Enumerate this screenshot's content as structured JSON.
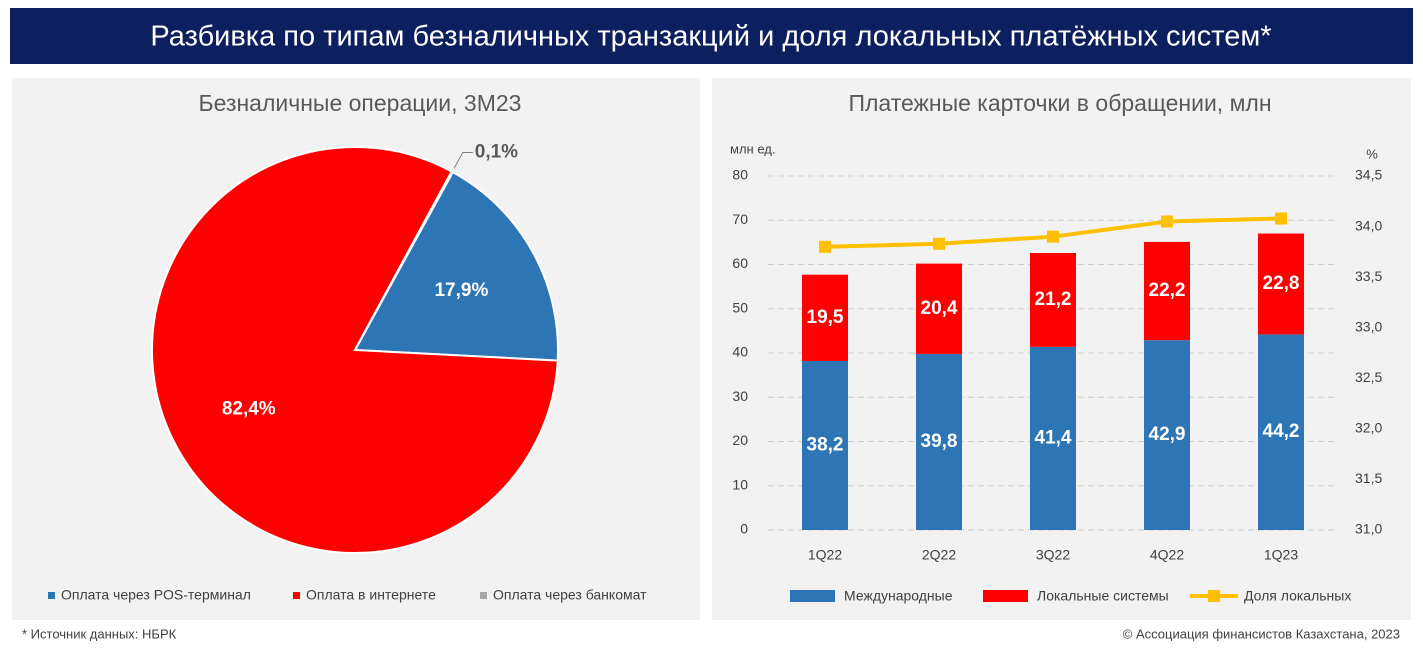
{
  "header": {
    "title": "Разбивка по типам безналичных транзакций и доля локальных платёжных систем*"
  },
  "chart_data": [
    {
      "type": "pie",
      "title": "Безналичные операции, 3М23",
      "categories": [
        "Оплата через POS-терминал",
        "Оплата в интернете",
        "Оплата через банкомат"
      ],
      "values": [
        17.9,
        82.4,
        0.1
      ],
      "value_labels": [
        "17,9%",
        "82,4%",
        "0,1%"
      ],
      "colors": [
        "#2e75b6",
        "#ff0000",
        "#a6a6a6"
      ],
      "legend": "bottom"
    },
    {
      "type": "bar",
      "stacked": true,
      "title": "Платежные карточки в обращении, млн",
      "y_label": "млн ед.",
      "y2_label": "%",
      "categories": [
        "1Q22",
        "2Q22",
        "3Q22",
        "4Q22",
        "1Q23"
      ],
      "series": [
        {
          "name": "Международные",
          "color": "#2e75b6",
          "values": [
            38.2,
            39.8,
            41.4,
            42.9,
            44.2
          ],
          "value_labels": [
            "38,2",
            "39,8",
            "41,4",
            "42,9",
            "44,2"
          ]
        },
        {
          "name": "Локальные системы",
          "color": "#ff0000",
          "values": [
            19.5,
            20.4,
            21.2,
            22.2,
            22.8
          ],
          "value_labels": [
            "19,5",
            "20,4",
            "21,2",
            "22,2",
            "22,8"
          ]
        },
        {
          "name": "Доля локальных",
          "color": "#ffc000",
          "type": "line",
          "axis": "y2",
          "values": [
            33.8,
            33.83,
            33.9,
            34.05,
            34.08
          ]
        }
      ],
      "ylim": [
        0,
        80
      ],
      "yticks": [
        0,
        10,
        20,
        30,
        40,
        50,
        60,
        70,
        80
      ],
      "y2lim": [
        31,
        34.5
      ],
      "y2ticks": [
        {
          "value": 31,
          "label": "31,0"
        },
        {
          "value": 31.5,
          "label": "31,5"
        },
        {
          "value": 32,
          "label": "32,0"
        },
        {
          "value": 32.5,
          "label": "32,5"
        },
        {
          "value": 33,
          "label": "33,0"
        },
        {
          "value": 33.5,
          "label": "33,5"
        },
        {
          "value": 34,
          "label": "34,0"
        },
        {
          "value": 34.5,
          "label": "34,5"
        }
      ],
      "grid": true,
      "legend": "bottom"
    }
  ],
  "footer": {
    "source": "* Источник данных: НБРК",
    "copyright": "© Ассоциация финансистов Казахстана, 2023"
  }
}
